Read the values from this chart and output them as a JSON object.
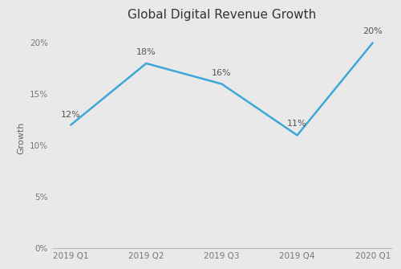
{
  "title": "Global Digital Revenue Growth",
  "categories": [
    "2019 Q1",
    "2019 Q2",
    "2019 Q3",
    "2019 Q4",
    "2020 Q1"
  ],
  "values": [
    0.12,
    0.18,
    0.16,
    0.11,
    0.2
  ],
  "labels": [
    "12%",
    "18%",
    "16%",
    "11%",
    "20%"
  ],
  "line_color": "#3DA8D8",
  "background_color": "#E9E9E9",
  "ylabel": "Growth",
  "ylim": [
    0,
    0.215
  ],
  "yticks": [
    0,
    0.05,
    0.1,
    0.15,
    0.2
  ],
  "title_fontsize": 11,
  "label_fontsize": 8,
  "axis_fontsize": 7.5,
  "ylabel_fontsize": 8,
  "line_width": 1.8
}
